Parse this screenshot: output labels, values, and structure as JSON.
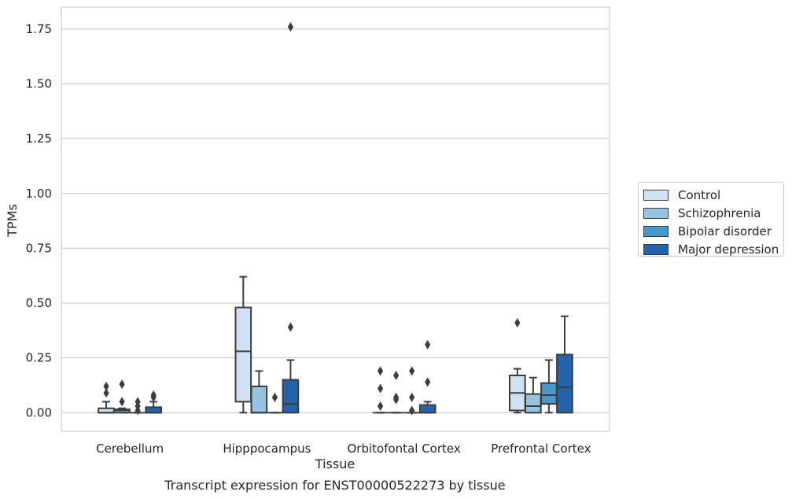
{
  "chart_data": {
    "type": "box",
    "title": "Transcript expression for ENST00000522273 by tissue",
    "xlabel": "Tissue",
    "ylabel": "TPMs",
    "ylim": [
      -0.085,
      1.85
    ],
    "yticks": [
      0.0,
      0.25,
      0.5,
      0.75,
      1.0,
      1.25,
      1.5,
      1.75
    ],
    "ytick_labels": [
      "0.00",
      "0.25",
      "0.50",
      "0.75",
      "1.00",
      "1.25",
      "1.50",
      "1.75"
    ],
    "categories": [
      "Cerebellum",
      "Hipppocampus",
      "Orbitofontal Cortex",
      "Prefrontal Cortex"
    ],
    "grid": true,
    "legend_position": "right",
    "series": [
      {
        "name": "Control",
        "color": "#d0e1f2",
        "boxes": [
          {
            "q1": 0.0,
            "median": 0.0,
            "q3": 0.02,
            "whislo": 0.0,
            "whishi": 0.05,
            "fliers": [
              0.09,
              0.12
            ]
          },
          {
            "q1": 0.05,
            "median": 0.28,
            "q3": 0.48,
            "whislo": 0.0,
            "whishi": 0.62,
            "fliers": []
          },
          {
            "q1": 0.0,
            "median": 0.0,
            "q3": 0.0,
            "whislo": 0.0,
            "whishi": 0.0,
            "fliers": [
              0.03,
              0.11,
              0.19
            ]
          },
          {
            "q1": 0.01,
            "median": 0.09,
            "q3": 0.17,
            "whislo": 0.0,
            "whishi": 0.2,
            "fliers": [
              0.41
            ]
          }
        ]
      },
      {
        "name": "Schizophrenia",
        "color": "#94c4df",
        "boxes": [
          {
            "q1": 0.0,
            "median": 0.01,
            "q3": 0.015,
            "whislo": 0.0,
            "whishi": 0.02,
            "fliers": [
              0.05,
              0.13
            ]
          },
          {
            "q1": 0.0,
            "median": 0.0,
            "q3": 0.12,
            "whislo": 0.0,
            "whishi": 0.19,
            "fliers": []
          },
          {
            "q1": 0.0,
            "median": 0.0,
            "q3": 0.0,
            "whislo": 0.0,
            "whishi": 0.0,
            "fliers": [
              0.06,
              0.07,
              0.17
            ]
          },
          {
            "q1": 0.0,
            "median": 0.03,
            "q3": 0.085,
            "whislo": 0.0,
            "whishi": 0.16,
            "fliers": []
          }
        ]
      },
      {
        "name": "Bipolar disorder",
        "color": "#4a98c9",
        "boxes": [
          {
            "q1": 0.0,
            "median": 0.0,
            "q3": 0.0,
            "whislo": 0.0,
            "whishi": 0.0,
            "fliers": [
              0.01,
              0.03,
              0.05
            ]
          },
          {
            "q1": 0.0,
            "median": 0.0,
            "q3": 0.0,
            "whislo": 0.0,
            "whishi": 0.0,
            "fliers": [
              0.07
            ]
          },
          {
            "q1": 0.0,
            "median": 0.0,
            "q3": 0.0,
            "whislo": 0.0,
            "whishi": 0.0,
            "fliers": [
              0.01,
              0.07,
              0.19
            ]
          },
          {
            "q1": 0.04,
            "median": 0.08,
            "q3": 0.135,
            "whislo": 0.0,
            "whishi": 0.24,
            "fliers": []
          }
        ]
      },
      {
        "name": "Major depression",
        "color": "#2164ab",
        "boxes": [
          {
            "q1": 0.0,
            "median": 0.0,
            "q3": 0.025,
            "whislo": 0.0,
            "whishi": 0.05,
            "fliers": [
              0.07,
              0.08
            ]
          },
          {
            "q1": 0.0,
            "median": 0.04,
            "q3": 0.15,
            "whislo": 0.0,
            "whishi": 0.24,
            "fliers": [
              0.39,
              1.76
            ]
          },
          {
            "q1": 0.0,
            "median": 0.0,
            "q3": 0.035,
            "whislo": 0.0,
            "whishi": 0.05,
            "fliers": [
              0.14,
              0.31
            ]
          },
          {
            "q1": 0.0,
            "median": 0.115,
            "q3": 0.265,
            "whislo": 0.0,
            "whishi": 0.44,
            "fliers": []
          }
        ]
      }
    ]
  }
}
